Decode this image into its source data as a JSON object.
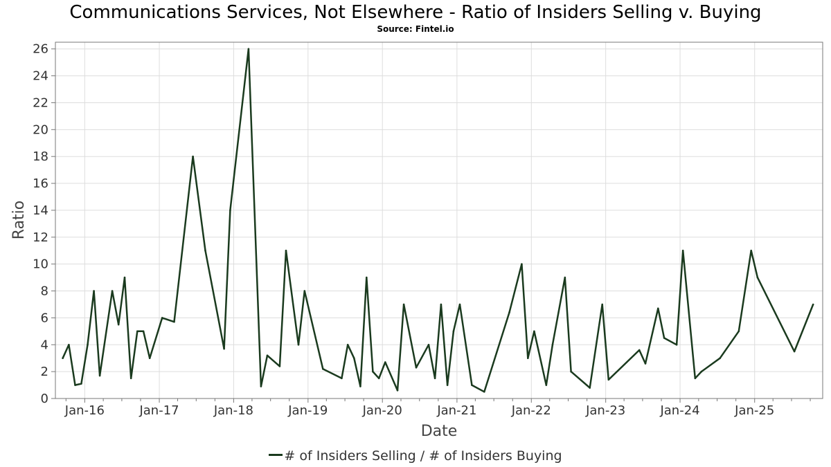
{
  "title": "Communications Services, Not Elsewhere - Ratio of Insiders Selling v. Buying",
  "subtitle": "Source: Fintel.io",
  "colors": {
    "line": "#1a3a1e",
    "grid": "#dddddd",
    "axis": "#777777"
  },
  "chart_data": {
    "type": "line",
    "title": "Communications Services, Not Elsewhere - Ratio of Insiders Selling v. Buying",
    "subtitle": "Source: Fintel.io",
    "xlabel": "Date",
    "ylabel": "Ratio",
    "ylim": [
      0,
      26.5
    ],
    "xlim": [
      "2015-08-10",
      "2025-12-01"
    ],
    "grid": true,
    "legend_position": "bottom",
    "x_ticks": [
      "Jan-16",
      "Jan-17",
      "Jan-18",
      "Jan-19",
      "Jan-20",
      "Jan-21",
      "Jan-22",
      "Jan-23",
      "Jan-24",
      "Jan-25"
    ],
    "x_tick_dates": [
      "2016-01-01",
      "2017-01-01",
      "2018-01-01",
      "2019-01-01",
      "2020-01-01",
      "2021-01-01",
      "2022-01-01",
      "2023-01-01",
      "2024-01-01",
      "2025-01-01"
    ],
    "y_ticks": [
      0,
      2,
      4,
      6,
      8,
      10,
      12,
      14,
      16,
      18,
      20,
      22,
      24,
      26
    ],
    "series": [
      {
        "name": "# of Insiders Selling / # of Insiders Buying",
        "points": [
          [
            "2015-09-15",
            3.0
          ],
          [
            "2015-10-15",
            4.0
          ],
          [
            "2015-11-15",
            1.0
          ],
          [
            "2015-12-15",
            1.1
          ],
          [
            "2016-01-15",
            4.0
          ],
          [
            "2016-02-15",
            8.0
          ],
          [
            "2016-03-15",
            1.7
          ],
          [
            "2016-05-15",
            8.0
          ],
          [
            "2016-06-15",
            5.5
          ],
          [
            "2016-07-15",
            9.0
          ],
          [
            "2016-08-15",
            1.5
          ],
          [
            "2016-09-15",
            5.0
          ],
          [
            "2016-10-15",
            5.0
          ],
          [
            "2016-11-15",
            3.0
          ],
          [
            "2017-01-15",
            6.0
          ],
          [
            "2017-03-15",
            5.7
          ],
          [
            "2017-06-15",
            18.0
          ],
          [
            "2017-08-15",
            11.0
          ],
          [
            "2017-11-15",
            3.7
          ],
          [
            "2017-12-15",
            14.0
          ],
          [
            "2018-03-15",
            26.0
          ],
          [
            "2018-05-15",
            0.9
          ],
          [
            "2018-06-15",
            3.2
          ],
          [
            "2018-08-15",
            2.4
          ],
          [
            "2018-09-15",
            11.0
          ],
          [
            "2018-11-15",
            4.0
          ],
          [
            "2018-12-15",
            8.0
          ],
          [
            "2019-03-15",
            2.2
          ],
          [
            "2019-06-15",
            1.5
          ],
          [
            "2019-07-15",
            4.0
          ],
          [
            "2019-08-15",
            3.0
          ],
          [
            "2019-09-15",
            0.9
          ],
          [
            "2019-10-15",
            9.0
          ],
          [
            "2019-11-15",
            2.0
          ],
          [
            "2019-12-15",
            1.5
          ],
          [
            "2020-01-15",
            2.7
          ],
          [
            "2020-03-15",
            0.6
          ],
          [
            "2020-04-15",
            7.0
          ],
          [
            "2020-06-15",
            2.3
          ],
          [
            "2020-08-15",
            4.0
          ],
          [
            "2020-09-15",
            1.5
          ],
          [
            "2020-10-15",
            7.0
          ],
          [
            "2020-11-15",
            1.0
          ],
          [
            "2020-12-15",
            5.0
          ],
          [
            "2021-01-15",
            7.0
          ],
          [
            "2021-03-15",
            1.0
          ],
          [
            "2021-05-15",
            0.5
          ],
          [
            "2021-09-15",
            6.4
          ],
          [
            "2021-11-15",
            10.0
          ],
          [
            "2021-12-15",
            3.0
          ],
          [
            "2022-01-15",
            5.0
          ],
          [
            "2022-03-15",
            1.0
          ],
          [
            "2022-04-15",
            4.0
          ],
          [
            "2022-06-15",
            9.0
          ],
          [
            "2022-07-15",
            2.0
          ],
          [
            "2022-10-15",
            0.8
          ],
          [
            "2022-12-15",
            7.0
          ],
          [
            "2023-01-15",
            1.4
          ],
          [
            "2023-06-15",
            3.6
          ],
          [
            "2023-07-15",
            2.6
          ],
          [
            "2023-09-15",
            6.7
          ],
          [
            "2023-10-15",
            4.5
          ],
          [
            "2023-12-15",
            4.0
          ],
          [
            "2024-01-15",
            11.0
          ],
          [
            "2024-03-15",
            1.5
          ],
          [
            "2024-04-15",
            2.0
          ],
          [
            "2024-07-15",
            3.0
          ],
          [
            "2024-10-15",
            5.0
          ],
          [
            "2024-12-15",
            11.0
          ],
          [
            "2025-01-15",
            9.0
          ],
          [
            "2025-07-15",
            3.5
          ],
          [
            "2025-10-15",
            7.0
          ]
        ]
      }
    ]
  },
  "legend": {
    "label": "# of Insiders Selling / # of Insiders Buying"
  }
}
